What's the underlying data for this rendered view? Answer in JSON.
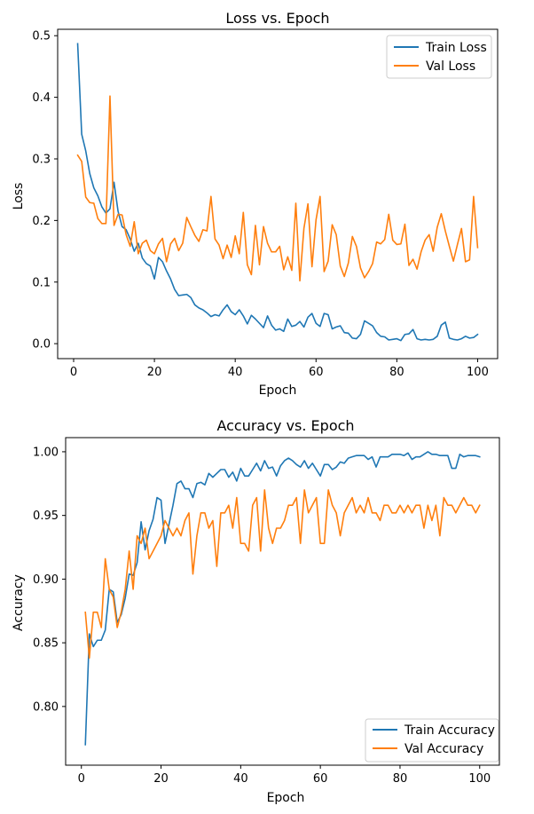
{
  "chart_data": [
    {
      "type": "line",
      "title": "Loss vs. Epoch",
      "xlabel": "Epoch",
      "ylabel": "Loss",
      "xlim": [
        -3.95,
        104.95
      ],
      "ylim": [
        -0.0243,
        0.5104
      ],
      "xticks": [
        0,
        20,
        40,
        60,
        80,
        100
      ],
      "xtick_labels": [
        "0",
        "20",
        "40",
        "60",
        "80",
        "100"
      ],
      "yticks": [
        0.0,
        0.1,
        0.2,
        0.3,
        0.4,
        0.5
      ],
      "ytick_labels": [
        "0.0",
        "0.1",
        "0.2",
        "0.3",
        "0.4",
        "0.5"
      ],
      "legend": "top-right",
      "grid": false,
      "series": [
        {
          "name": "Train Loss",
          "color": "#1f77b4",
          "x": [
            1,
            2,
            3,
            4,
            5,
            6,
            7,
            8,
            9,
            10,
            11,
            12,
            13,
            14,
            15,
            16,
            17,
            18,
            19,
            20,
            21,
            22,
            23,
            24,
            25,
            26,
            27,
            28,
            29,
            30,
            31,
            32,
            33,
            34,
            35,
            36,
            37,
            38,
            39,
            40,
            41,
            42,
            43,
            44,
            45,
            46,
            47,
            48,
            49,
            50,
            51,
            52,
            53,
            54,
            55,
            56,
            57,
            58,
            59,
            60,
            61,
            62,
            63,
            64,
            65,
            66,
            67,
            68,
            69,
            70,
            71,
            72,
            73,
            74,
            75,
            76,
            77,
            78,
            79,
            80,
            81,
            82,
            83,
            84,
            85,
            86,
            87,
            88,
            89,
            90,
            91,
            92,
            93,
            94,
            95,
            96,
            97,
            98,
            99,
            100
          ],
          "values": [
            0.487,
            0.34,
            0.313,
            0.276,
            0.253,
            0.24,
            0.222,
            0.212,
            0.219,
            0.262,
            0.215,
            0.19,
            0.185,
            0.17,
            0.15,
            0.163,
            0.139,
            0.13,
            0.126,
            0.105,
            0.14,
            0.133,
            0.118,
            0.105,
            0.088,
            0.078,
            0.079,
            0.08,
            0.075,
            0.063,
            0.058,
            0.055,
            0.05,
            0.044,
            0.047,
            0.045,
            0.055,
            0.063,
            0.052,
            0.047,
            0.055,
            0.045,
            0.032,
            0.046,
            0.04,
            0.033,
            0.026,
            0.045,
            0.03,
            0.022,
            0.024,
            0.02,
            0.04,
            0.028,
            0.03,
            0.036,
            0.027,
            0.043,
            0.049,
            0.033,
            0.028,
            0.049,
            0.047,
            0.024,
            0.027,
            0.029,
            0.018,
            0.017,
            0.009,
            0.008,
            0.015,
            0.037,
            0.033,
            0.029,
            0.018,
            0.012,
            0.011,
            0.006,
            0.007,
            0.008,
            0.005,
            0.015,
            0.016,
            0.023,
            0.008,
            0.006,
            0.007,
            0.006,
            0.007,
            0.012,
            0.03,
            0.035,
            0.009,
            0.007,
            0.006,
            0.008,
            0.012,
            0.009,
            0.01,
            0.015
          ]
        },
        {
          "name": "Val Loss",
          "color": "#ff7f0e",
          "x": [
            1,
            2,
            3,
            4,
            5,
            6,
            7,
            8,
            9,
            10,
            11,
            12,
            13,
            14,
            15,
            16,
            17,
            18,
            19,
            20,
            21,
            22,
            23,
            24,
            25,
            26,
            27,
            28,
            29,
            30,
            31,
            32,
            33,
            34,
            35,
            36,
            37,
            38,
            39,
            40,
            41,
            42,
            43,
            44,
            45,
            46,
            47,
            48,
            49,
            50,
            51,
            52,
            53,
            54,
            55,
            56,
            57,
            58,
            59,
            60,
            61,
            62,
            63,
            64,
            65,
            66,
            67,
            68,
            69,
            70,
            71,
            72,
            73,
            74,
            75,
            76,
            77,
            78,
            79,
            80,
            81,
            82,
            83,
            84,
            85,
            86,
            87,
            88,
            89,
            90,
            91,
            92,
            93,
            94,
            95,
            96,
            97,
            98,
            99,
            100
          ],
          "values": [
            0.306,
            0.296,
            0.238,
            0.229,
            0.228,
            0.203,
            0.195,
            0.195,
            0.402,
            0.192,
            0.21,
            0.209,
            0.177,
            0.158,
            0.198,
            0.146,
            0.163,
            0.168,
            0.151,
            0.146,
            0.162,
            0.171,
            0.133,
            0.162,
            0.171,
            0.151,
            0.163,
            0.205,
            0.19,
            0.176,
            0.166,
            0.185,
            0.183,
            0.239,
            0.17,
            0.16,
            0.138,
            0.16,
            0.14,
            0.175,
            0.146,
            0.213,
            0.128,
            0.112,
            0.192,
            0.128,
            0.19,
            0.163,
            0.149,
            0.149,
            0.158,
            0.12,
            0.141,
            0.119,
            0.228,
            0.102,
            0.187,
            0.227,
            0.125,
            0.201,
            0.239,
            0.117,
            0.134,
            0.193,
            0.177,
            0.126,
            0.109,
            0.131,
            0.174,
            0.158,
            0.123,
            0.107,
            0.117,
            0.13,
            0.165,
            0.162,
            0.169,
            0.21,
            0.168,
            0.161,
            0.162,
            0.194,
            0.127,
            0.137,
            0.121,
            0.149,
            0.168,
            0.177,
            0.15,
            0.189,
            0.211,
            0.183,
            0.158,
            0.134,
            0.161,
            0.187,
            0.133,
            0.136,
            0.239,
            0.156
          ]
        }
      ]
    },
    {
      "type": "line",
      "title": "Accuracy vs. Epoch",
      "xlabel": "Epoch",
      "ylabel": "Accuracy",
      "xlim": [
        -3.95,
        104.95
      ],
      "ylim": [
        0.7539,
        1.0111
      ],
      "xticks": [
        0,
        20,
        40,
        60,
        80,
        100
      ],
      "xtick_labels": [
        "0",
        "20",
        "40",
        "60",
        "80",
        "100"
      ],
      "yticks": [
        0.8,
        0.85,
        0.9,
        0.95,
        1.0
      ],
      "ytick_labels": [
        "0.80",
        "0.85",
        "0.90",
        "0.95",
        "1.00"
      ],
      "legend": "bottom-right",
      "grid": false,
      "series": [
        {
          "name": "Train Accuracy",
          "color": "#1f77b4",
          "x": [
            1,
            2,
            3,
            4,
            5,
            6,
            7,
            8,
            9,
            10,
            11,
            12,
            13,
            14,
            15,
            16,
            17,
            18,
            19,
            20,
            21,
            22,
            23,
            24,
            25,
            26,
            27,
            28,
            29,
            30,
            31,
            32,
            33,
            34,
            35,
            36,
            37,
            38,
            39,
            40,
            41,
            42,
            43,
            44,
            45,
            46,
            47,
            48,
            49,
            50,
            51,
            52,
            53,
            54,
            55,
            56,
            57,
            58,
            59,
            60,
            61,
            62,
            63,
            64,
            65,
            66,
            67,
            68,
            69,
            70,
            71,
            72,
            73,
            74,
            75,
            76,
            77,
            78,
            79,
            80,
            81,
            82,
            83,
            84,
            85,
            86,
            87,
            88,
            89,
            90,
            91,
            92,
            93,
            94,
            95,
            96,
            97,
            98,
            99,
            100
          ],
          "values": [
            0.77,
            0.857,
            0.847,
            0.852,
            0.852,
            0.86,
            0.892,
            0.89,
            0.866,
            0.872,
            0.885,
            0.904,
            0.903,
            0.913,
            0.945,
            0.923,
            0.938,
            0.947,
            0.964,
            0.962,
            0.928,
            0.943,
            0.958,
            0.975,
            0.977,
            0.971,
            0.971,
            0.964,
            0.975,
            0.976,
            0.974,
            0.983,
            0.98,
            0.983,
            0.986,
            0.986,
            0.98,
            0.984,
            0.977,
            0.987,
            0.981,
            0.981,
            0.986,
            0.991,
            0.985,
            0.993,
            0.987,
            0.988,
            0.981,
            0.989,
            0.993,
            0.995,
            0.993,
            0.99,
            0.988,
            0.993,
            0.987,
            0.991,
            0.986,
            0.981,
            0.99,
            0.99,
            0.986,
            0.988,
            0.992,
            0.991,
            0.995,
            0.996,
            0.997,
            0.997,
            0.997,
            0.994,
            0.996,
            0.988,
            0.996,
            0.996,
            0.996,
            0.998,
            0.998,
            0.998,
            0.997,
            0.999,
            0.994,
            0.996,
            0.996,
            0.998,
            1.0,
            0.998,
            0.998,
            0.997,
            0.997,
            0.997,
            0.987,
            0.987,
            0.998,
            0.996,
            0.997,
            0.997,
            0.997,
            0.996
          ]
        },
        {
          "name": "Val Accuracy",
          "color": "#ff7f0e",
          "x": [
            1,
            2,
            3,
            4,
            5,
            6,
            7,
            8,
            9,
            10,
            11,
            12,
            13,
            14,
            15,
            16,
            17,
            18,
            19,
            20,
            21,
            22,
            23,
            24,
            25,
            26,
            27,
            28,
            29,
            30,
            31,
            32,
            33,
            34,
            35,
            36,
            37,
            38,
            39,
            40,
            41,
            42,
            43,
            44,
            45,
            46,
            47,
            48,
            49,
            50,
            51,
            52,
            53,
            54,
            55,
            56,
            57,
            58,
            59,
            60,
            61,
            62,
            63,
            64,
            65,
            66,
            67,
            68,
            69,
            70,
            71,
            72,
            73,
            74,
            75,
            76,
            77,
            78,
            79,
            80,
            81,
            82,
            83,
            84,
            85,
            86,
            87,
            88,
            89,
            90,
            91,
            92,
            93,
            94,
            95,
            96,
            97,
            98,
            99,
            100
          ],
          "values": [
            0.874,
            0.838,
            0.874,
            0.874,
            0.862,
            0.916,
            0.892,
            0.886,
            0.862,
            0.874,
            0.892,
            0.922,
            0.892,
            0.934,
            0.928,
            0.94,
            0.916,
            0.922,
            0.928,
            0.934,
            0.946,
            0.94,
            0.934,
            0.94,
            0.934,
            0.946,
            0.952,
            0.904,
            0.934,
            0.952,
            0.952,
            0.94,
            0.946,
            0.91,
            0.952,
            0.952,
            0.958,
            0.94,
            0.964,
            0.928,
            0.928,
            0.922,
            0.958,
            0.964,
            0.922,
            0.97,
            0.94,
            0.928,
            0.94,
            0.94,
            0.946,
            0.958,
            0.958,
            0.964,
            0.928,
            0.97,
            0.952,
            0.958,
            0.964,
            0.928,
            0.928,
            0.97,
            0.958,
            0.952,
            0.934,
            0.952,
            0.958,
            0.964,
            0.952,
            0.958,
            0.952,
            0.964,
            0.952,
            0.952,
            0.946,
            0.958,
            0.958,
            0.952,
            0.952,
            0.958,
            0.952,
            0.958,
            0.952,
            0.958,
            0.958,
            0.94,
            0.958,
            0.946,
            0.958,
            0.934,
            0.964,
            0.958,
            0.958,
            0.952,
            0.958,
            0.964,
            0.958,
            0.958,
            0.952,
            0.958
          ]
        }
      ]
    }
  ]
}
